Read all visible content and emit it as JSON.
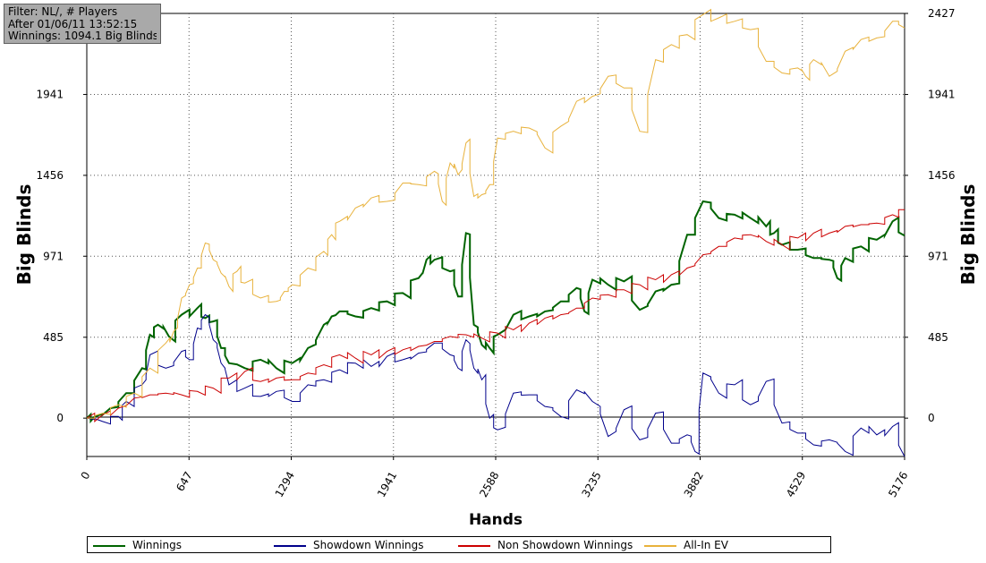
{
  "info": {
    "filter": "Filter: NL/, # Players",
    "after": "After 01/06/11 13:52:15",
    "winnings": "Winnings: 1094.1 Big Blinds"
  },
  "chart_data": {
    "type": "line",
    "xlabel": "Hands",
    "ylabel": "Big Blinds",
    "ylabel_right": "Big Blinds",
    "xlim": [
      0,
      5176
    ],
    "ylim": [
      -230,
      2427
    ],
    "x_ticks": [
      0,
      647,
      1294,
      1941,
      2588,
      3235,
      3882,
      4529,
      5176
    ],
    "y_ticks": [
      0,
      485,
      971,
      1456,
      1941,
      2427
    ],
    "grid": true,
    "legend_position": "bottom",
    "series": [
      {
        "name": "Winnings",
        "color": "#006400",
        "x": [
          0,
          50,
          150,
          250,
          350,
          400,
          450,
          520,
          600,
          700,
          750,
          800,
          850,
          900,
          1000,
          1100,
          1200,
          1300,
          1400,
          1500,
          1550,
          1600,
          1700,
          1800,
          1900,
          2000,
          2100,
          2150,
          2200,
          2300,
          2350,
          2400,
          2450,
          2500,
          2550,
          2600,
          2700,
          2800,
          2900,
          3000,
          3100,
          3150,
          3200,
          3300,
          3400,
          3500,
          3600,
          3700,
          3800,
          3900,
          4000,
          4100,
          4200,
          4300,
          4350,
          4400,
          4500,
          4600,
          4700,
          4750,
          4800,
          4900,
          5000,
          5100,
          5176
        ],
        "values": [
          0,
          10,
          60,
          150,
          300,
          500,
          560,
          490,
          620,
          660,
          600,
          580,
          420,
          330,
          300,
          350,
          300,
          330,
          420,
          560,
          610,
          640,
          610,
          660,
          700,
          750,
          840,
          950,
          950,
          880,
          730,
          1110,
          560,
          440,
          420,
          500,
          620,
          610,
          640,
          700,
          780,
          640,
          830,
          800,
          820,
          650,
          760,
          800,
          1100,
          1300,
          1200,
          1220,
          1200,
          1150,
          1110,
          1040,
          1010,
          960,
          950,
          840,
          960,
          1030,
          1070,
          1180,
          1094
        ]
      },
      {
        "name": "Showdown Winnings",
        "color": "#00008b",
        "x": [
          0,
          100,
          200,
          250,
          350,
          400,
          500,
          600,
          650,
          700,
          750,
          800,
          850,
          900,
          1000,
          1100,
          1200,
          1300,
          1400,
          1500,
          1600,
          1700,
          1800,
          1900,
          2000,
          2100,
          2200,
          2300,
          2350,
          2400,
          2450,
          2500,
          2550,
          2600,
          2700,
          2800,
          2900,
          3000,
          3100,
          3200,
          3300,
          3400,
          3500,
          3600,
          3700,
          3800,
          3850,
          3900,
          4000,
          4100,
          4200,
          4300,
          4400,
          4500,
          4600,
          4700,
          4800,
          4900,
          5000,
          5100,
          5176
        ],
        "values": [
          0,
          -20,
          10,
          100,
          200,
          380,
          300,
          400,
          350,
          540,
          620,
          470,
          330,
          200,
          180,
          130,
          160,
          100,
          200,
          230,
          290,
          330,
          310,
          370,
          350,
          390,
          450,
          380,
          300,
          470,
          300,
          230,
          0,
          -70,
          150,
          140,
          70,
          10,
          170,
          100,
          -110,
          50,
          -130,
          30,
          -150,
          -100,
          -200,
          270,
          150,
          200,
          80,
          220,
          -30,
          -90,
          -160,
          -130,
          -200,
          -60,
          -100,
          -50,
          -230
        ]
      },
      {
        "name": "Non Showdown Winnings",
        "color": "#cc0000",
        "x": [
          0,
          100,
          200,
          300,
          400,
          500,
          600,
          700,
          800,
          900,
          1000,
          1100,
          1200,
          1300,
          1400,
          1500,
          1600,
          1700,
          1800,
          1900,
          2000,
          2100,
          2200,
          2300,
          2400,
          2500,
          2600,
          2700,
          2800,
          2900,
          3000,
          3100,
          3200,
          3300,
          3400,
          3500,
          3600,
          3700,
          3800,
          3900,
          4000,
          4100,
          4200,
          4300,
          4400,
          4500,
          4600,
          4700,
          4800,
          4900,
          5000,
          5100,
          5176
        ],
        "values": [
          0,
          20,
          60,
          120,
          140,
          150,
          140,
          160,
          180,
          240,
          280,
          220,
          240,
          230,
          270,
          320,
          380,
          360,
          380,
          400,
          410,
          430,
          460,
          490,
          500,
          480,
          510,
          530,
          570,
          600,
          620,
          660,
          720,
          740,
          770,
          800,
          830,
          860,
          900,
          980,
          1030,
          1080,
          1100,
          1060,
          1040,
          1080,
          1110,
          1110,
          1150,
          1160,
          1170,
          1220,
          1250
        ]
      },
      {
        "name": "All-In EV",
        "color": "#e8b23c",
        "x": [
          0,
          100,
          200,
          300,
          400,
          500,
          550,
          600,
          650,
          700,
          750,
          800,
          850,
          900,
          950,
          1000,
          1100,
          1200,
          1250,
          1300,
          1400,
          1500,
          1550,
          1600,
          1700,
          1800,
          1900,
          2000,
          2100,
          2200,
          2250,
          2300,
          2350,
          2400,
          2450,
          2500,
          2550,
          2600,
          2700,
          2800,
          2900,
          3000,
          3100,
          3200,
          3300,
          3400,
          3500,
          3600,
          3700,
          3800,
          3900,
          4000,
          4100,
          4200,
          4300,
          4400,
          4500,
          4550,
          4600,
          4700,
          4800,
          4900,
          5000,
          5100,
          5176
        ],
        "values": [
          0,
          30,
          80,
          150,
          300,
          450,
          520,
          720,
          800,
          900,
          1050,
          950,
          870,
          790,
          880,
          810,
          720,
          700,
          760,
          800,
          900,
          1000,
          1100,
          1180,
          1260,
          1320,
          1300,
          1410,
          1400,
          1480,
          1300,
          1530,
          1460,
          1650,
          1330,
          1340,
          1400,
          1680,
          1720,
          1740,
          1620,
          1750,
          1900,
          1930,
          2050,
          1980,
          1720,
          2150,
          2240,
          2300,
          2420,
          2400,
          2380,
          2330,
          2140,
          2070,
          2100,
          2050,
          2150,
          2050,
          2200,
          2270,
          2280,
          2380,
          2340
        ]
      }
    ]
  },
  "legend": {
    "winnings": "Winnings",
    "showdown": "Showdown Winnings",
    "nonshowdown": "Non Showdown Winnings",
    "allin": "All-In EV"
  },
  "colors": {
    "winnings": "#006400",
    "showdown": "#00008b",
    "nonshowdown": "#cc0000",
    "allin": "#e8b23c",
    "info_box_bg": "#a9a9a9"
  }
}
